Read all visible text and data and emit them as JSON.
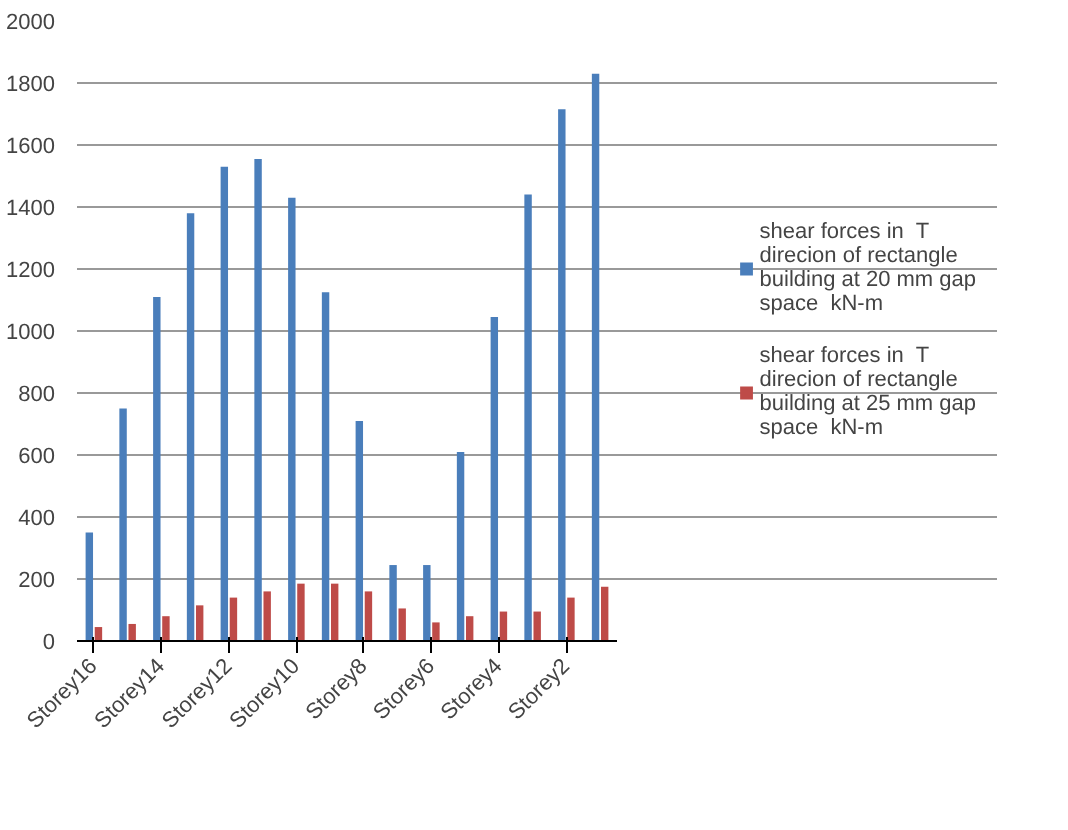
{
  "chart_data": {
    "type": "bar",
    "categories": [
      "Storey16",
      null,
      "Storey14",
      null,
      "Storey12",
      null,
      "Storey10",
      null,
      "Storey8",
      null,
      "Storey6",
      null,
      "Storey4",
      null,
      "Storey2",
      null
    ],
    "series": [
      {
        "name": "shear forces in  T direcion of rectangle building at 20 mm gap space  kN-m",
        "color": "#4a7ebb",
        "values": [
          350,
          750,
          1110,
          1380,
          1530,
          1555,
          1430,
          1125,
          710,
          245,
          245,
          610,
          1045,
          1440,
          1715,
          1830
        ]
      },
      {
        "name": "shear forces in  T direcion of rectangle building at 25 mm gap space  kN-m",
        "color": "#be4b48",
        "values": [
          45,
          55,
          80,
          115,
          140,
          160,
          185,
          185,
          160,
          105,
          60,
          80,
          95,
          95,
          140,
          175
        ]
      }
    ],
    "ylim": [
      0,
      2000
    ],
    "yticks": [
      0,
      200,
      400,
      600,
      800,
      1000,
      1200,
      1400,
      1600,
      1800,
      2000
    ],
    "grid": "y",
    "legend": "right"
  }
}
